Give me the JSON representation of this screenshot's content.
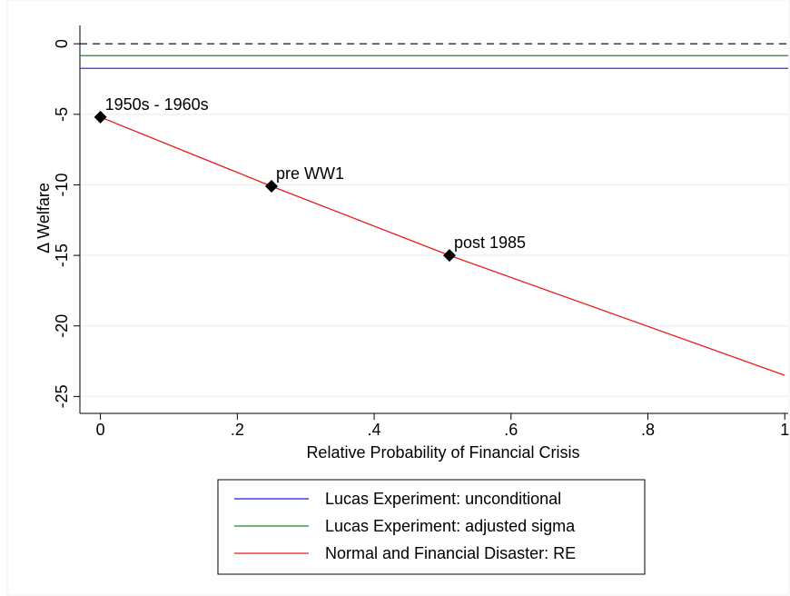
{
  "chart_data": {
    "type": "line",
    "x_label": "Relative Probability of Financial Crisis",
    "y_label": "Δ Welfare",
    "xlim": [
      -0.03,
      1.005
    ],
    "ylim": [
      -26.2,
      1.3
    ],
    "xticks": [
      0,
      {
        "value": 0.2,
        "label": ".2"
      },
      {
        "value": 0.4,
        "label": ".4"
      },
      {
        "value": 0.6,
        "label": ".6"
      },
      {
        "value": 0.8,
        "label": ".8"
      },
      1
    ],
    "yticks": [
      0,
      -5,
      -10,
      -15,
      -20,
      -25
    ],
    "grid": true,
    "hlines": [
      {
        "value": 0,
        "color": "#000000",
        "dashed": true
      },
      {
        "name": "Lucas Experiment: unconditional",
        "color": "#1a1adb",
        "value": -1.74
      },
      {
        "name": "Lucas Experiment: adjusted sigma",
        "color": "#1a8a1a",
        "value": -0.84
      }
    ],
    "series": [
      {
        "name": "Normal and Financial Disaster: RE",
        "color": "#e81c1c",
        "x": [
          0,
          0.25,
          0.51,
          1
        ],
        "values": [
          -5.2,
          -10.1,
          -15.0,
          -23.5
        ]
      }
    ],
    "points": {
      "x": [
        0,
        0.25,
        0.51
      ],
      "values": [
        -5.2,
        -10.1,
        -15.0
      ],
      "labels": [
        "1950s - 1960s",
        "pre WW1",
        "post 1985"
      ]
    }
  }
}
